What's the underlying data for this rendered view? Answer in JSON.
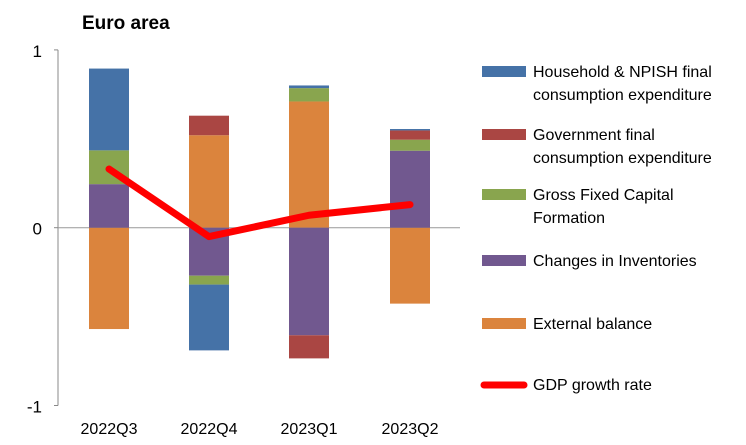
{
  "chart_data": {
    "type": "bar",
    "stacked": true,
    "title": "Euro area",
    "xlabel": "",
    "ylabel": "",
    "ylim": [
      -1,
      1
    ],
    "yticks": [
      "1",
      "0",
      "-1"
    ],
    "ytick_values": [
      1,
      0,
      -1
    ],
    "grid": false,
    "legend_position": "right",
    "categories": [
      "2022Q3",
      "2022Q4",
      "2023Q1",
      "2023Q2"
    ],
    "series": [
      {
        "name": "Household & NPISH final consumption expenditure",
        "legend_lines": [
          "Household & NPISH final",
          "consumption expenditure"
        ],
        "color": "#4572a7",
        "values": [
          0.46,
          -0.37,
          0.015,
          0.008
        ]
      },
      {
        "name": "Government final consumption expenditure",
        "legend_lines": [
          "Government final",
          "consumption expenditure"
        ],
        "color": "#aa4643",
        "values": [
          0.0,
          0.11,
          -0.13,
          0.052
        ]
      },
      {
        "name": "Gross Fixed Capital Formation",
        "legend_lines": [
          "Gross Fixed Capital",
          "Formation"
        ],
        "color": "#89a54e",
        "values": [
          0.19,
          -0.05,
          0.075,
          0.062
        ]
      },
      {
        "name": "Changes in Inventories",
        "legend_lines": [
          "Changes in Inventories"
        ],
        "color": "#71588f",
        "values": [
          0.245,
          -0.27,
          -0.605,
          0.433
        ]
      },
      {
        "name": "External balance",
        "legend_lines": [
          "External balance"
        ],
        "color": "#db843d",
        "values": [
          -0.57,
          0.52,
          0.71,
          -0.427
        ]
      }
    ],
    "line_series": {
      "name": "GDP growth rate",
      "legend_lines": [
        "GDP growth rate"
      ],
      "color": "#ff0000",
      "values": [
        0.33,
        -0.05,
        0.07,
        0.13
      ]
    }
  }
}
